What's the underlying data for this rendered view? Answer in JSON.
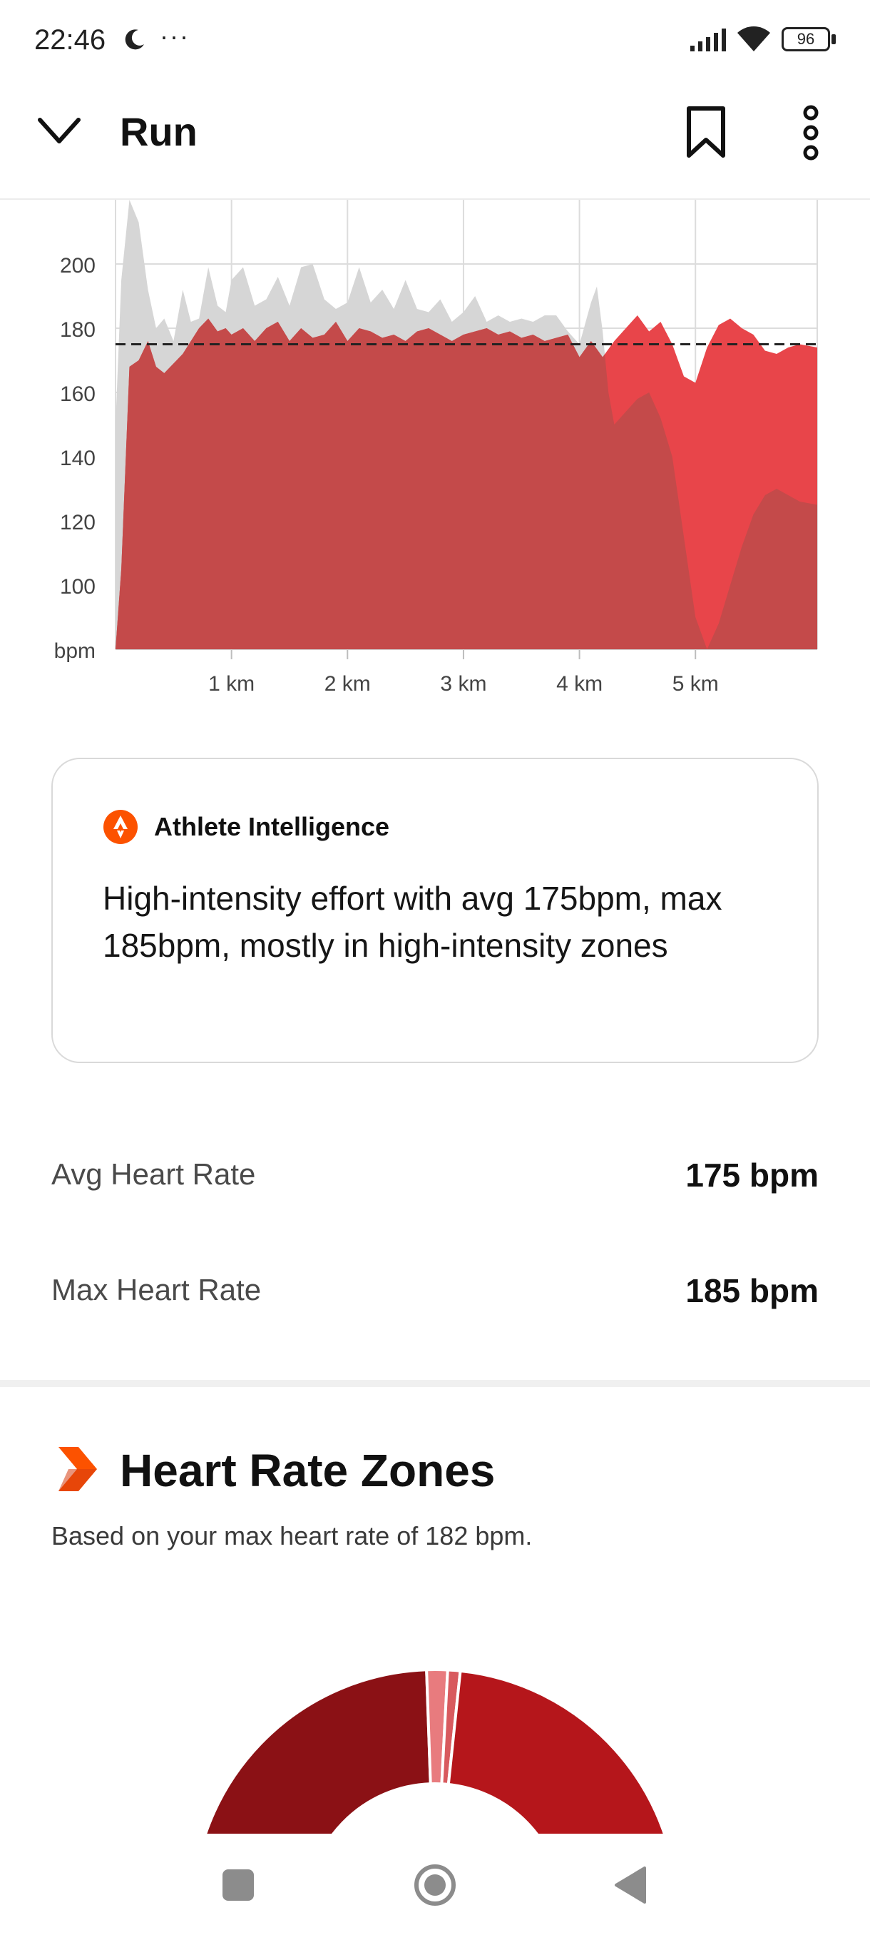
{
  "status_bar": {
    "time": "22:46",
    "more": "···",
    "battery": "96",
    "icons": [
      "moon-icon",
      "signal-icon",
      "wifi-icon",
      "battery-icon"
    ]
  },
  "header": {
    "title": "Run",
    "icons": [
      "chevron-down-icon",
      "bookmark-icon",
      "more-vertical-icon"
    ]
  },
  "chart_data": {
    "type": "area",
    "y_ticks": [
      "200",
      "180",
      "160",
      "140",
      "120",
      "100"
    ],
    "y_unit": "bpm",
    "ylim": [
      80,
      220
    ],
    "x_ticks": [
      "1 km",
      "2 km",
      "3 km",
      "4 km",
      "5 km"
    ],
    "xlim": [
      0,
      6.05
    ],
    "average_line": 175,
    "series": [
      {
        "color": "#d6d6d6",
        "x": [
          0,
          0.05,
          0.12,
          0.2,
          0.28,
          0.35,
          0.42,
          0.5,
          0.58,
          0.65,
          0.72,
          0.8,
          0.88,
          0.95,
          1.0,
          1.1,
          1.2,
          1.3,
          1.4,
          1.5,
          1.6,
          1.7,
          1.8,
          1.9,
          2.0,
          2.1,
          2.2,
          2.3,
          2.4,
          2.5,
          2.6,
          2.7,
          2.8,
          2.9,
          3.0,
          3.1,
          3.2,
          3.3,
          3.4,
          3.5,
          3.6,
          3.7,
          3.8,
          3.9,
          4.0,
          4.1,
          4.15,
          4.2,
          4.25,
          4.3,
          4.4,
          4.5,
          4.6,
          4.7,
          4.8,
          4.9,
          5.0,
          5.1,
          5.2,
          5.3,
          5.4,
          5.5,
          5.6,
          5.7,
          5.8,
          5.9,
          6.05
        ],
        "values": [
          150,
          195,
          220,
          213,
          192,
          180,
          183,
          176,
          192,
          182,
          183,
          199,
          187,
          185,
          195,
          199,
          187,
          189,
          196,
          187,
          199,
          200,
          189,
          186,
          188,
          199,
          188,
          192,
          186,
          195,
          186,
          185,
          189,
          182,
          185,
          190,
          182,
          184,
          182,
          183,
          182,
          184,
          184,
          179,
          175,
          188,
          193,
          179,
          160,
          150,
          154,
          158,
          160,
          152,
          140,
          115,
          90,
          80,
          88,
          100,
          112,
          122,
          128,
          130,
          128,
          126,
          125
        ]
      },
      {
        "color": "#e8454a",
        "x": [
          0,
          0.05,
          0.12,
          0.2,
          0.28,
          0.35,
          0.42,
          0.5,
          0.58,
          0.65,
          0.72,
          0.8,
          0.88,
          0.95,
          1.0,
          1.1,
          1.2,
          1.3,
          1.4,
          1.5,
          1.6,
          1.7,
          1.8,
          1.9,
          2.0,
          2.1,
          2.2,
          2.3,
          2.4,
          2.5,
          2.6,
          2.7,
          2.8,
          2.9,
          3.0,
          3.1,
          3.2,
          3.3,
          3.4,
          3.5,
          3.6,
          3.7,
          3.8,
          3.9,
          4.0,
          4.1,
          4.2,
          4.3,
          4.4,
          4.5,
          4.6,
          4.7,
          4.8,
          4.9,
          5.0,
          5.1,
          5.2,
          5.3,
          5.4,
          5.5,
          5.6,
          5.7,
          5.8,
          5.9,
          6.05
        ],
        "values": [
          80,
          105,
          168,
          170,
          176,
          168,
          166,
          169,
          172,
          176,
          180,
          183,
          179,
          180,
          178,
          180,
          176,
          180,
          182,
          176,
          180,
          177,
          178,
          182,
          176,
          180,
          179,
          177,
          178,
          176,
          179,
          180,
          178,
          176,
          178,
          179,
          180,
          178,
          179,
          177,
          178,
          176,
          177,
          178,
          171,
          176,
          171,
          176,
          180,
          184,
          179,
          182,
          175,
          165,
          163,
          174,
          181,
          183,
          180,
          178,
          173,
          172,
          174,
          175,
          174
        ]
      }
    ]
  },
  "ai_card": {
    "title": "Athlete Intelligence",
    "text": "High-intensity effort with avg 175bpm, max 185bpm, mostly in high-intensity zones",
    "icon": "athlete-intelligence-logo"
  },
  "stats": {
    "avg_label": "Avg Heart Rate",
    "avg_value": "175 bpm",
    "max_label": "Max Heart Rate",
    "max_value": "185 bpm"
  },
  "zones": {
    "title": "Heart Rate Zones",
    "subtitle": "Based on your max heart rate of 182 bpm.",
    "icon": "zones-chevron-icon",
    "segment_colors": [
      "#8b1115",
      "#e87b7e",
      "#d85a5e",
      "#b5161b"
    ],
    "segment_spans_deg": [
      88,
      5,
      3,
      84
    ]
  },
  "nav": {
    "icons": [
      "recent-apps-icon",
      "home-icon",
      "back-icon"
    ]
  }
}
